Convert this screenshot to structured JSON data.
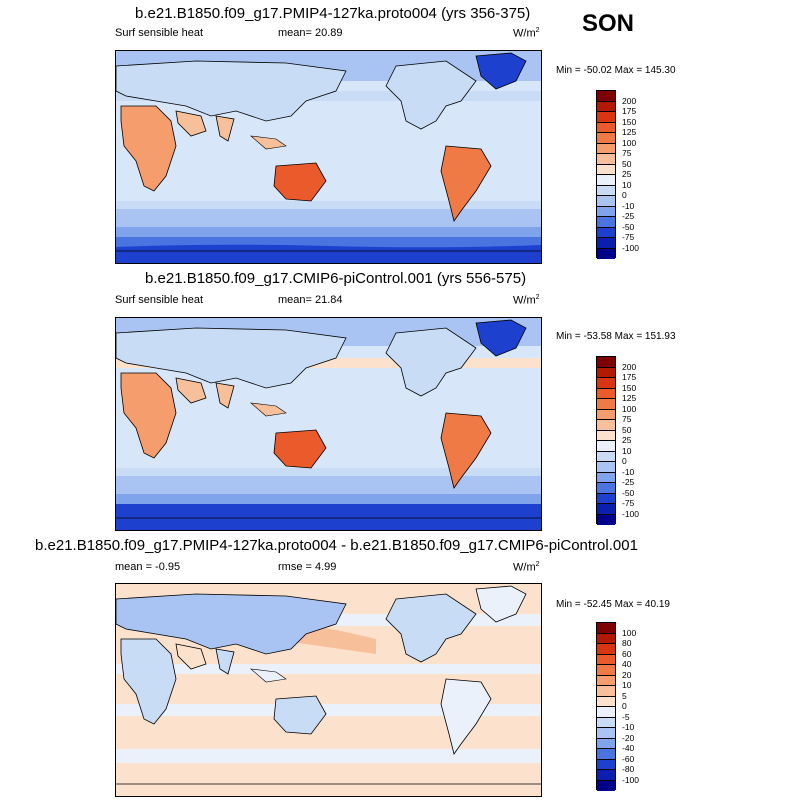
{
  "season": "SON",
  "panels": [
    {
      "title": "b.e21.B1850.f09_g17.PMIP4-127ka.proto004 (yrs 356-375)",
      "left_text": "Surf sensible heat",
      "stat_text": "mean=  20.89",
      "units_base": "W/m",
      "units_exp": "2",
      "minmax": "Min = -50.02 Max = 145.30",
      "palette": "abs"
    },
    {
      "title": "b.e21.B1850.f09_g17.CMIP6-piControl.001 (yrs 556-575)",
      "left_text": "Surf sensible heat",
      "stat_text": "mean=  21.84",
      "units_base": "W/m",
      "units_exp": "2",
      "minmax": "Min = -53.58 Max = 151.93",
      "palette": "abs"
    },
    {
      "title": "b.e21.B1850.f09_g17.PMIP4-127ka.proto004 - b.e21.B1850.f09_g17.CMIP6-piControl.001",
      "left_text": "mean =  -0.95",
      "stat_text": "rmse =   4.99",
      "units_base": "W/m",
      "units_exp": "2",
      "minmax": "Min = -52.45 Max =  40.19",
      "palette": "diff"
    }
  ],
  "colorbars": {
    "abs": {
      "labels": [
        "200",
        "175",
        "150",
        "125",
        "100",
        "75",
        "50",
        "25",
        "10",
        "0",
        "-10",
        "-25",
        "-50",
        "-75",
        "-100"
      ],
      "colors": [
        "#7f0000",
        "#b31800",
        "#d83510",
        "#ea5a2a",
        "#f07a45",
        "#f59d6c",
        "#f8c09a",
        "#fce1cc",
        "#eaf1fb",
        "#c9dcf6",
        "#a9c4f2",
        "#7fa4eb",
        "#4a74e0",
        "#1d40cf",
        "#0a1fb0",
        "#02018a"
      ]
    },
    "diff": {
      "labels": [
        "100",
        "80",
        "60",
        "40",
        "20",
        "10",
        "5",
        "0",
        "-5",
        "-10",
        "-20",
        "-40",
        "-60",
        "-80",
        "-100"
      ],
      "colors": [
        "#7f0000",
        "#b31800",
        "#d83510",
        "#ea5a2a",
        "#f07a45",
        "#f59d6c",
        "#f8c09a",
        "#fce1cc",
        "#eaf1fb",
        "#c9dcf6",
        "#a9c4f2",
        "#7fa4eb",
        "#4a74e0",
        "#1d40cf",
        "#0a1fb0",
        "#02018a"
      ]
    }
  }
}
